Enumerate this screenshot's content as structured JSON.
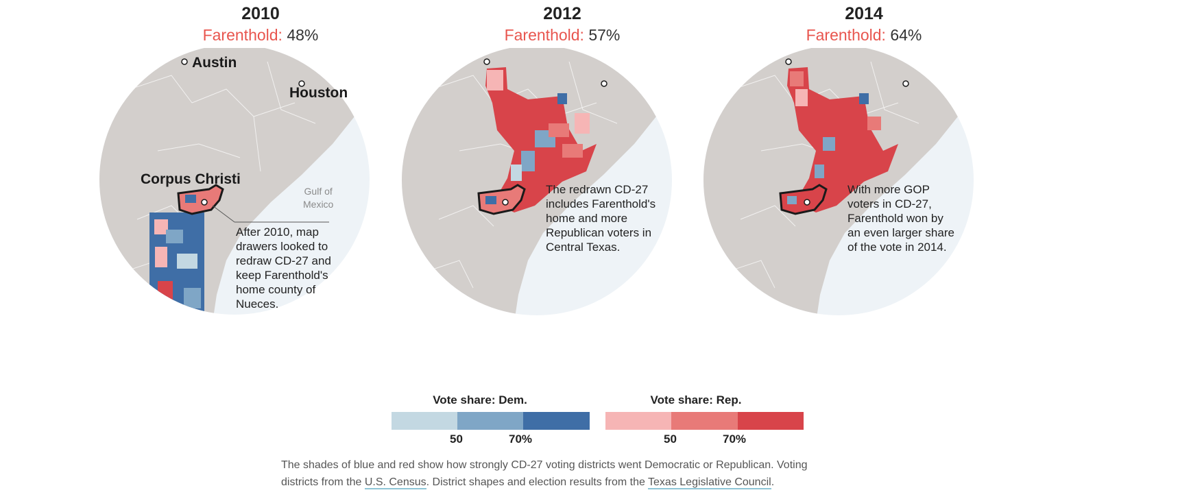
{
  "maps": [
    {
      "year": "2010",
      "candidate": "Farenthold:",
      "share": "48%",
      "cities": {
        "austin": "Austin",
        "houston": "Houston",
        "corpus": "Corpus Christi"
      },
      "gulf": [
        "Gulf of",
        "Mexico"
      ],
      "annotation": [
        "After 2010, map",
        "drawers looked to",
        "redraw CD-27 and",
        "keep Farenthold's",
        "home county of",
        "Nueces."
      ]
    },
    {
      "year": "2012",
      "candidate": "Farenthold:",
      "share": "57%",
      "annotation": [
        "The redrawn CD-27",
        "includes Farenthold's",
        "home and more",
        "Republican voters in",
        "Central Texas."
      ]
    },
    {
      "year": "2014",
      "candidate": "Farenthold:",
      "share": "64%",
      "annotation": [
        "With more GOP",
        "voters in CD-27,",
        "Farenthold won by",
        "an even larger share",
        "of the vote in 2014."
      ]
    }
  ],
  "legend": {
    "dem": {
      "title": "Vote share: Dem.",
      "colors": [
        "#c3d8e2",
        "#7fa6c6",
        "#3f6ea6"
      ],
      "ticks": [
        "50",
        "70%"
      ]
    },
    "rep": {
      "title": "Vote share: Rep.",
      "colors": [
        "#f6b5b5",
        "#e87a78",
        "#d8444a"
      ],
      "ticks": [
        "50",
        "70%"
      ]
    }
  },
  "note": {
    "line1": "The shades of blue and red show how strongly CD-27 voting districts went Democratic or Republican. Voting",
    "prefix": "districts from the ",
    "census_link": "U.S. Census",
    "mid": ". District shapes and election results from the ",
    "tlc_link": "Texas Legislative Council",
    "end": "."
  }
}
